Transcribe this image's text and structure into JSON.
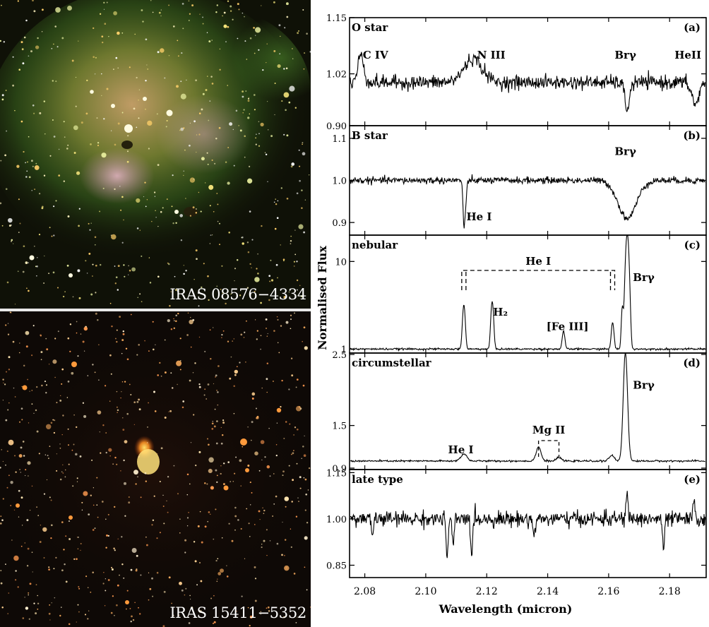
{
  "images": [
    {
      "label": "IRAS 08576−4334"
    },
    {
      "label": "IRAS 15411−5352"
    }
  ],
  "chart_data": {
    "type": "line",
    "xlabel": "Wavelength (micron)",
    "ylabel": "Normalised Flux",
    "xlim": [
      2.075,
      2.192
    ],
    "xticks": [
      2.08,
      2.1,
      2.12,
      2.14,
      2.16,
      2.18
    ],
    "xtick_labels": [
      "2.08",
      "2.10",
      "2.12",
      "2.14",
      "2.16",
      "2.18"
    ],
    "panels": [
      {
        "name": "O star",
        "tag": "(a)",
        "scale": "linear",
        "ylim": [
          0.9,
          1.15
        ],
        "yticks": [
          0.9,
          1.02,
          1.15
        ],
        "ytick_labels": [
          "0.90",
          "1.02",
          "1.15"
        ],
        "baseline": 1.0,
        "noise": 0.008,
        "features": [
          {
            "x": 2.0785,
            "depth": 0.05,
            "width": 0.0009
          },
          {
            "x": 2.0793,
            "depth": 0.02,
            "width": 0.0008
          },
          {
            "x": 2.1155,
            "depth": 0.055,
            "width": 0.003
          },
          {
            "x": 2.1661,
            "depth": -0.06,
            "width": 0.0008
          },
          {
            "x": 2.1885,
            "depth": -0.05,
            "width": 0.0012
          }
        ],
        "labels": [
          {
            "text": "C IV",
            "x": 2.0835,
            "y": 1.055
          },
          {
            "text": "N III",
            "x": 2.1215,
            "y": 1.055
          },
          {
            "text": "Brγ",
            "x": 2.1655,
            "y": 1.055
          },
          {
            "text": "HeII",
            "x": 2.186,
            "y": 1.055
          }
        ]
      },
      {
        "name": "B star",
        "tag": "(b)",
        "scale": "linear",
        "ylim": [
          0.87,
          1.13
        ],
        "yticks": [
          0.9,
          1.0,
          1.1
        ],
        "ytick_labels": [
          "0.9",
          "1.0",
          "1.1"
        ],
        "baseline": 1.0,
        "noise": 0.004,
        "features": [
          {
            "x": 2.1125,
            "depth": -0.1,
            "width": 0.0003
          },
          {
            "x": 2.1131,
            "depth": -0.06,
            "width": 0.0003
          },
          {
            "x": 2.1661,
            "depth": -0.09,
            "width": 0.003
          }
        ],
        "labels": [
          {
            "text": "Brγ",
            "x": 2.1655,
            "y": 1.06
          },
          {
            "text": "He I",
            "x": 2.1175,
            "y": 0.905
          }
        ]
      },
      {
        "name": "nebular",
        "tag": "(c)",
        "scale": "log",
        "ylim": [
          0.9,
          20
        ],
        "yticks": [
          1,
          10
        ],
        "ytick_labels": [
          "1",
          "10"
        ],
        "baseline": 1.0,
        "noise": 0.012,
        "features": [
          {
            "x": 2.1125,
            "depth": 2.2,
            "width": 0.0004
          },
          {
            "x": 2.1218,
            "depth": 2.5,
            "width": 0.0004
          },
          {
            "x": 2.1452,
            "depth": 0.6,
            "width": 0.0004
          },
          {
            "x": 2.1613,
            "depth": 1.0,
            "width": 0.0004
          },
          {
            "x": 2.1645,
            "depth": 2.0,
            "width": 0.0003
          },
          {
            "x": 2.1661,
            "depth": 20.0,
            "width": 0.0005
          }
        ],
        "bracket": {
          "x": [
            2.1125,
            2.1613
          ],
          "label": "He I"
        },
        "labels": [
          {
            "text": "H₂",
            "x": 2.1245,
            "y": 2.4
          },
          {
            "text": "[Fe III]",
            "x": 2.1465,
            "y": 1.65
          },
          {
            "text": "Brγ",
            "x": 2.1715,
            "y": 6.0
          }
        ]
      },
      {
        "name": "circumstellar",
        "tag": "(d)",
        "scale": "linear",
        "ylim": [
          0.88,
          2.52
        ],
        "yticks": [
          0.9,
          1.5,
          2.5
        ],
        "ytick_labels": [
          "0.9",
          "1.5",
          "2.5"
        ],
        "baseline": 1.0,
        "noise": 0.006,
        "features": [
          {
            "x": 2.1125,
            "depth": 0.1,
            "width": 0.001
          },
          {
            "x": 2.137,
            "depth": 0.2,
            "width": 0.0008
          },
          {
            "x": 2.1437,
            "depth": 0.05,
            "width": 0.0008
          },
          {
            "x": 2.161,
            "depth": 0.08,
            "width": 0.0008
          },
          {
            "x": 2.1655,
            "depth": 1.55,
            "width": 0.0007
          }
        ],
        "bracket": {
          "x": [
            2.137,
            2.1437
          ],
          "label": "Mg II"
        },
        "labels": [
          {
            "text": "He I",
            "x": 2.1115,
            "y": 1.11
          },
          {
            "text": "Brγ",
            "x": 2.1715,
            "y": 2.02
          }
        ]
      },
      {
        "name": "late type",
        "tag": "(e)",
        "scale": "linear",
        "ylim": [
          0.81,
          1.16
        ],
        "yticks": [
          0.85,
          1.0,
          1.15
        ],
        "ytick_labels": [
          "0.85",
          "1.00",
          "1.15"
        ],
        "baseline": 1.0,
        "noise": 0.012,
        "features": [
          {
            "x": 2.0825,
            "depth": -0.05,
            "width": 0.0003
          },
          {
            "x": 2.107,
            "depth": -0.14,
            "width": 0.0003
          },
          {
            "x": 2.109,
            "depth": -0.1,
            "width": 0.0003
          },
          {
            "x": 2.115,
            "depth": -0.12,
            "width": 0.0003
          },
          {
            "x": 2.1355,
            "depth": -0.06,
            "width": 0.0003
          },
          {
            "x": 2.166,
            "depth": 0.09,
            "width": 0.0003
          },
          {
            "x": 2.178,
            "depth": -0.11,
            "width": 0.0003
          },
          {
            "x": 2.188,
            "depth": 0.05,
            "width": 0.0003
          }
        ],
        "labels": []
      }
    ]
  }
}
